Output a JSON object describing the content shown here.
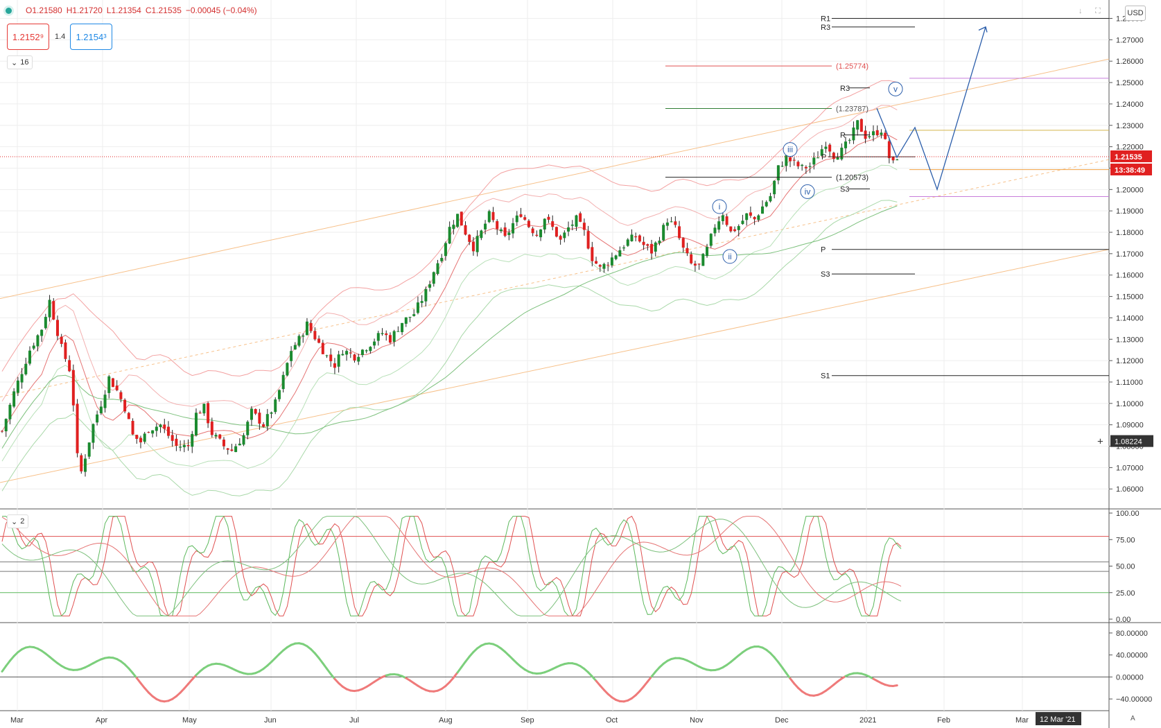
{
  "legend": {
    "open": "O1.21580",
    "high": "H1.21720",
    "low": "L1.21354",
    "close": "C1.21535",
    "change": "−0.00045 (−0.04%)"
  },
  "trade": {
    "sell": "1.2152⁹",
    "spread": "1.4",
    "buy": "1.2154³"
  },
  "indicator_toggles": {
    "main": "16",
    "stoch": "2"
  },
  "currency": "USD",
  "auto_label": "A",
  "crosshair_date": "12 Mar '21",
  "colors": {
    "up": "#1b8a2f",
    "down": "#e02020",
    "price_tag": "#e02020",
    "arrow": "#2a5daa"
  },
  "chart_data": {
    "type": "candlestick",
    "price_axis": {
      "range": [
        1.051,
        1.286
      ],
      "ticks": [
        "1.28000",
        "1.27000",
        "1.26000",
        "1.25000",
        "1.24000",
        "1.23000",
        "1.22000",
        "1.21000",
        "1.20000",
        "1.19000",
        "1.18000",
        "1.17000",
        "1.16000",
        "1.15000",
        "1.14000",
        "1.13000",
        "1.12000",
        "1.11000",
        "1.10000",
        "1.09000",
        "1.08000",
        "1.07000",
        "1.06000"
      ]
    },
    "last_price": "1.21535",
    "countdown": "13:38:49",
    "crosshair_price": "1.08224",
    "x_axis": [
      "Mar",
      "Apr",
      "May",
      "Jun",
      "Jul",
      "Aug",
      "Sep",
      "Oct",
      "Nov",
      "Dec",
      "2021",
      "Feb",
      "Mar"
    ],
    "candles_close_path": [
      [
        0,
        1.087
      ],
      [
        3,
        1.105
      ],
      [
        7,
        1.125
      ],
      [
        10,
        1.135
      ],
      [
        12,
        1.148
      ],
      [
        15,
        1.126
      ],
      [
        17,
        1.116
      ],
      [
        18,
        1.1
      ],
      [
        19,
        1.075
      ],
      [
        20,
        1.068
      ],
      [
        23,
        1.09
      ],
      [
        25,
        1.1
      ],
      [
        27,
        1.112
      ],
      [
        29,
        1.106
      ],
      [
        31,
        1.098
      ],
      [
        33,
        1.085
      ],
      [
        35,
        1.082
      ],
      [
        37,
        1.088
      ],
      [
        40,
        1.09
      ],
      [
        42,
        1.085
      ],
      [
        44,
        1.08
      ],
      [
        47,
        1.08
      ],
      [
        49,
        1.095
      ],
      [
        51,
        1.098
      ],
      [
        53,
        1.086
      ],
      [
        56,
        1.08
      ],
      [
        58,
        1.078
      ],
      [
        61,
        1.085
      ],
      [
        63,
        1.096
      ],
      [
        66,
        1.09
      ],
      [
        69,
        1.1
      ],
      [
        71,
        1.112
      ],
      [
        73,
        1.125
      ],
      [
        75,
        1.13
      ],
      [
        77,
        1.137
      ],
      [
        79,
        1.131
      ],
      [
        82,
        1.122
      ],
      [
        84,
        1.118
      ],
      [
        86,
        1.125
      ],
      [
        89,
        1.122
      ],
      [
        91,
        1.125
      ],
      [
        93,
        1.128
      ],
      [
        96,
        1.133
      ],
      [
        98,
        1.13
      ],
      [
        101,
        1.138
      ],
      [
        104,
        1.142
      ],
      [
        107,
        1.152
      ],
      [
        109,
        1.162
      ],
      [
        111,
        1.17
      ],
      [
        113,
        1.182
      ],
      [
        115,
        1.188
      ],
      [
        117,
        1.18
      ],
      [
        119,
        1.173
      ],
      [
        121,
        1.18
      ],
      [
        123,
        1.188
      ],
      [
        125,
        1.182
      ],
      [
        127,
        1.177
      ],
      [
        129,
        1.184
      ],
      [
        131,
        1.189
      ],
      [
        133,
        1.183
      ],
      [
        135,
        1.179
      ],
      [
        137,
        1.187
      ],
      [
        139,
        1.182
      ],
      [
        141,
        1.176
      ],
      [
        143,
        1.182
      ],
      [
        145,
        1.186
      ],
      [
        147,
        1.18
      ],
      [
        149,
        1.168
      ],
      [
        151,
        1.163
      ],
      [
        153,
        1.166
      ],
      [
        156,
        1.172
      ],
      [
        158,
        1.176
      ],
      [
        160,
        1.178
      ],
      [
        162,
        1.174
      ],
      [
        164,
        1.171
      ],
      [
        166,
        1.178
      ],
      [
        168,
        1.186
      ],
      [
        170,
        1.182
      ],
      [
        172,
        1.172
      ],
      [
        174,
        1.165
      ],
      [
        176,
        1.164
      ],
      [
        178,
        1.172
      ],
      [
        180,
        1.183
      ],
      [
        182,
        1.189
      ],
      [
        184,
        1.18
      ],
      [
        186,
        1.183
      ],
      [
        188,
        1.188
      ],
      [
        190,
        1.186
      ],
      [
        192,
        1.192
      ],
      [
        194,
        1.197
      ],
      [
        196,
        1.21
      ],
      [
        198,
        1.215
      ],
      [
        200,
        1.212
      ],
      [
        202,
        1.21
      ],
      [
        204,
        1.211
      ],
      [
        206,
        1.216
      ],
      [
        208,
        1.222
      ],
      [
        210,
        1.216
      ],
      [
        212,
        1.218
      ],
      [
        214,
        1.223
      ],
      [
        216,
        1.231
      ],
      [
        218,
        1.225
      ],
      [
        220,
        1.226
      ],
      [
        222,
        1.228
      ],
      [
        223,
        1.222
      ],
      [
        224,
        1.215
      ],
      [
        225,
        1.212
      ],
      [
        226,
        1.2154
      ]
    ],
    "price_levels": [
      {
        "label": "R1",
        "value": 1.28
      },
      {
        "label": "R3",
        "value": 1.276
      },
      {
        "label": "(1.25774)",
        "value": 1.25774
      },
      {
        "label": "R3",
        "value": 1.2475
      },
      {
        "label": "(1.23787)",
        "value": 1.23787
      },
      {
        "label": "R",
        "value": 1.2255
      },
      {
        "label": "P",
        "value": 1.2153
      },
      {
        "label": "(1.20573)",
        "value": 1.20573
      },
      {
        "label": "S3",
        "value": 1.2003
      },
      {
        "label": "P",
        "value": 1.172
      },
      {
        "label": "S3",
        "value": 1.1605
      },
      {
        "label": "S1",
        "value": 1.113
      }
    ],
    "wave_labels": [
      "i",
      "ii",
      "iii",
      "iv",
      "v"
    ],
    "stochastic": {
      "ticks": [
        "100.00",
        "75.00",
        "50.00",
        "25.00",
        "0.00"
      ],
      "levels": [
        78,
        54,
        45,
        25
      ]
    },
    "momentum": {
      "ticks": [
        "80.00000",
        "40.00000",
        "0.00000",
        "−40.00000"
      ],
      "range": [
        -55,
        90
      ]
    }
  }
}
